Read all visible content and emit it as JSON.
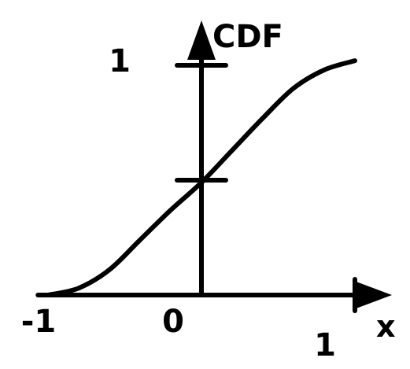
{
  "chart_data": {
    "type": "line",
    "title": "",
    "xlabel": "x",
    "ylabel": "CDF",
    "xlim": [
      -1.05,
      1.2
    ],
    "ylim": [
      0,
      1.25
    ],
    "x_ticks": [
      {
        "value": -1,
        "label": "-1"
      },
      {
        "value": 0,
        "label": "0"
      },
      {
        "value": 1,
        "label": "1"
      }
    ],
    "y_ticks": [
      {
        "value": 0.5,
        "label": ""
      },
      {
        "value": 1,
        "label": "1"
      }
    ],
    "series": [
      {
        "x": [
          -1.0,
          -0.8,
          -0.6,
          -0.4,
          -0.2,
          0.0,
          0.2,
          0.4,
          0.6,
          0.8,
          1.0
        ],
        "y": [
          0.0,
          0.03,
          0.11,
          0.24,
          0.37,
          0.49,
          0.63,
          0.77,
          0.9,
          0.98,
          1.02
        ]
      }
    ],
    "grid": false,
    "legend": "none"
  }
}
